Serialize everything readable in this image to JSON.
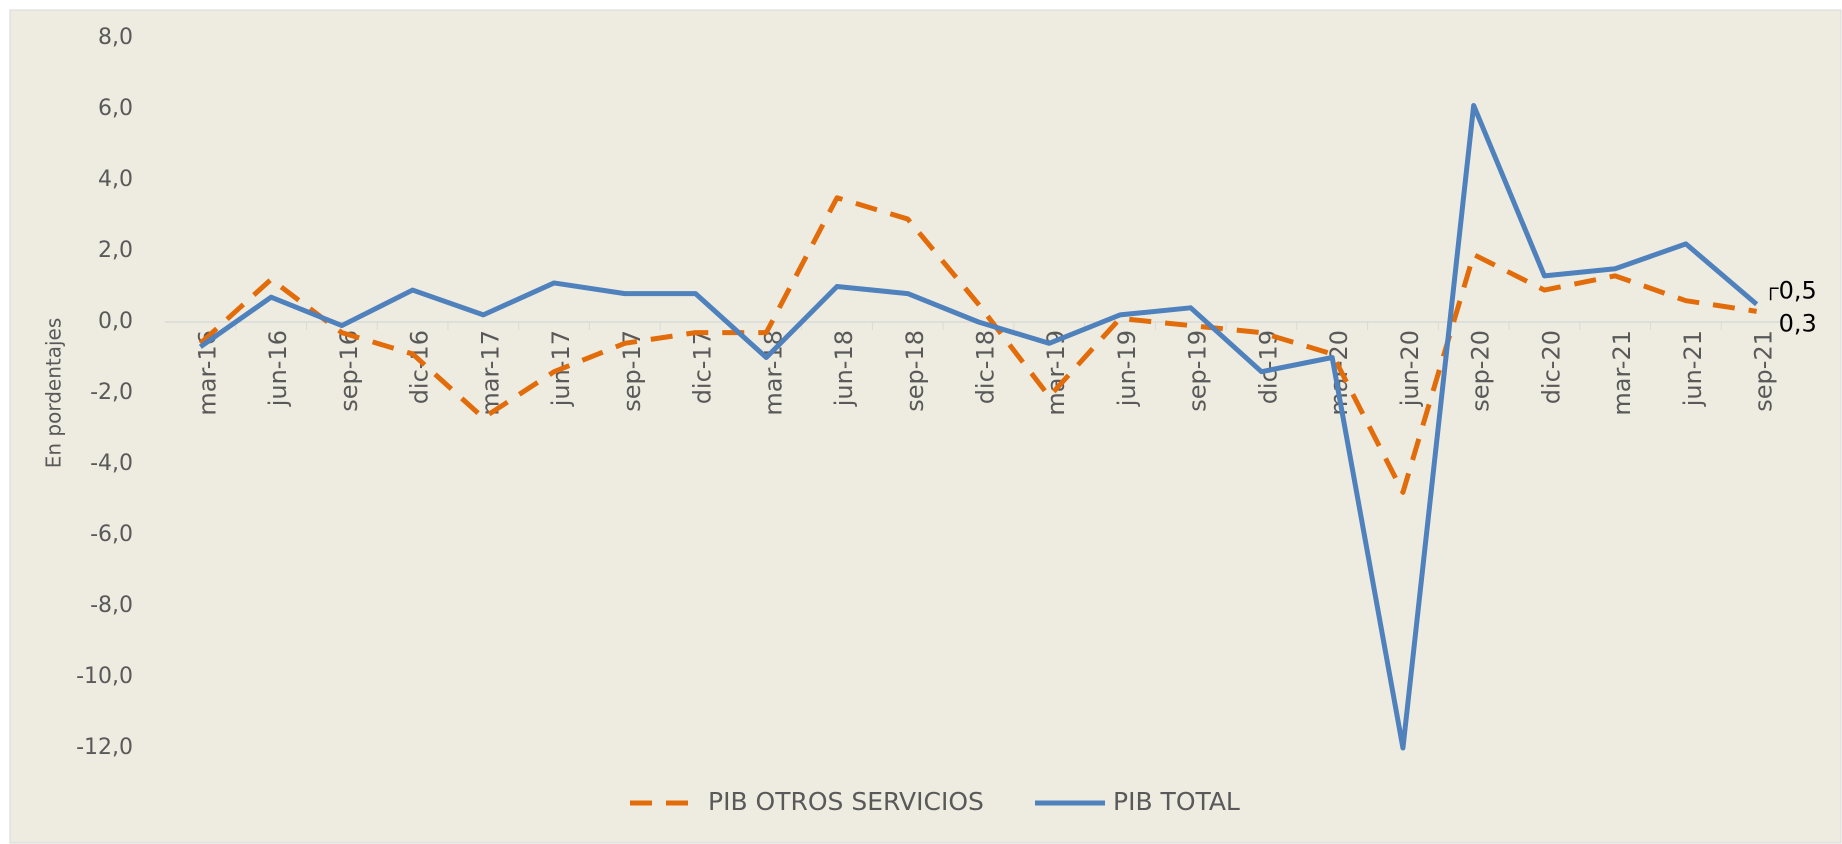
{
  "chart_data": {
    "type": "line",
    "y_axis_label": "En pordentajes",
    "categories": [
      "mar-16",
      "jun-16",
      "sep-16",
      "dic-16",
      "mar-17",
      "jun-17",
      "sep-17",
      "dic-17",
      "mar-18",
      "jun-18",
      "sep-18",
      "dic-18",
      "mar-19",
      "jun-19",
      "sep-19",
      "dic-19",
      "mar-20",
      "jun-20",
      "sep-20",
      "dic-20",
      "mar-21",
      "jun-21",
      "sep-21"
    ],
    "series": [
      {
        "name": "PIB OTROS SERVICIOS",
        "color": "#e36c0a",
        "dashed": true,
        "values": [
          -0.6,
          1.2,
          -0.3,
          -0.9,
          -2.7,
          -1.4,
          -0.6,
          -0.3,
          -0.3,
          3.5,
          2.9,
          0.5,
          -2.1,
          0.1,
          -0.1,
          -0.3,
          -0.9,
          -4.8,
          1.9,
          0.9,
          1.3,
          0.6,
          0.3
        ],
        "value_labels": [
          null,
          null,
          null,
          null,
          null,
          null,
          null,
          null,
          null,
          null,
          null,
          null,
          null,
          null,
          null,
          null,
          null,
          null,
          null,
          null,
          null,
          null,
          "0,3"
        ]
      },
      {
        "name": "PIB TOTAL",
        "color": "#4f81bd",
        "dashed": false,
        "values": [
          -0.7,
          0.7,
          -0.1,
          0.9,
          0.2,
          1.1,
          0.8,
          0.8,
          -1.0,
          1.0,
          0.8,
          0.0,
          -0.6,
          0.2,
          0.4,
          -1.4,
          -1.0,
          -12.0,
          6.1,
          1.3,
          1.5,
          2.2,
          0.5
        ],
        "value_labels": [
          null,
          null,
          null,
          null,
          null,
          null,
          null,
          null,
          null,
          null,
          null,
          null,
          null,
          null,
          null,
          null,
          null,
          null,
          null,
          null,
          null,
          null,
          "0,5"
        ]
      }
    ],
    "ylim": [
      -12,
      8
    ],
    "yticks": [
      {
        "value": -12,
        "label": "-12,0"
      },
      {
        "value": -10,
        "label": "-10,0"
      },
      {
        "value": -8,
        "label": "-8,0"
      },
      {
        "value": -6,
        "label": "-6,0"
      },
      {
        "value": -4,
        "label": "-4,0"
      },
      {
        "value": -2,
        "label": "-2,0"
      },
      {
        "value": 0,
        "label": "0,0"
      },
      {
        "value": 2,
        "label": "2,0"
      },
      {
        "value": 4,
        "label": "4,0"
      },
      {
        "value": 6,
        "label": "6,0"
      },
      {
        "value": 8,
        "label": "8,0"
      }
    ],
    "legend": "bottom"
  }
}
